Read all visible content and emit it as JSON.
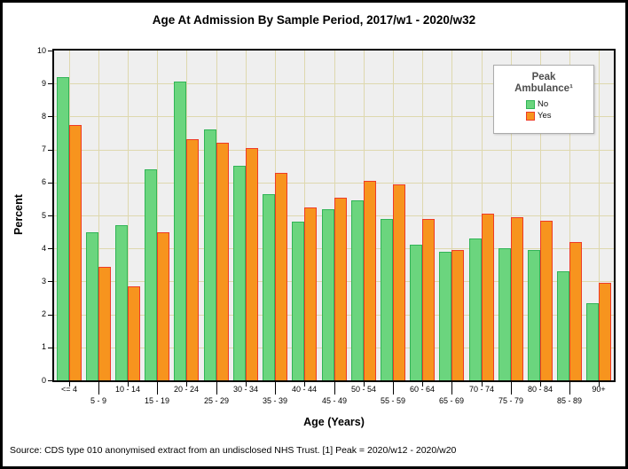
{
  "title": "Age At Admission By Sample Period, 2017/w1 - 2020/w32",
  "axes": {
    "y_label": "Percent",
    "x_label": "Age (Years)"
  },
  "legend": {
    "title": "Peak Ambulance¹",
    "items": [
      {
        "label": "No",
        "fill": "#6bd57e",
        "border": "#31b457"
      },
      {
        "label": "Yes",
        "fill": "#f7941e",
        "border": "#ee3b26"
      }
    ]
  },
  "source_note": "Source: CDS type 010 anonymised extract from an undisclosed NHS Trust. [1] Peak = 2020/w12 - 2020/w20",
  "colors": {
    "plot_background": "#efefef",
    "gridline": "#ded8ae",
    "axis": "#000000",
    "no_fill": "#6bd57e",
    "no_border": "#31b457",
    "yes_fill": "#f7941e",
    "yes_border": "#ee3b26"
  },
  "chart_data": {
    "type": "bar",
    "title": "Age At Admission By Sample Period, 2017/w1 - 2020/w32",
    "xlabel": "Age (Years)",
    "ylabel": "Percent",
    "ylim": [
      0,
      10
    ],
    "yticks": [
      0,
      1,
      2,
      3,
      4,
      5,
      6,
      7,
      8,
      9,
      10
    ],
    "grid": true,
    "legend_position": "top-right",
    "categories": [
      "<= 4",
      "5 - 9",
      "10 - 14",
      "15 - 19",
      "20 - 24",
      "25 - 29",
      "30 - 34",
      "35 - 39",
      "40 - 44",
      "45 - 49",
      "50 - 54",
      "55 - 59",
      "60 - 64",
      "65 - 69",
      "70 - 74",
      "75 - 79",
      "80 - 84",
      "85 - 89",
      "90+"
    ],
    "series": [
      {
        "name": "No",
        "values": [
          9.2,
          4.5,
          4.7,
          6.4,
          9.05,
          7.6,
          6.5,
          5.65,
          4.8,
          5.2,
          5.45,
          4.9,
          4.1,
          3.9,
          4.3,
          4.0,
          3.95,
          3.3,
          2.35
        ]
      },
      {
        "name": "Yes",
        "values": [
          7.75,
          3.45,
          2.85,
          4.5,
          7.3,
          7.2,
          7.05,
          6.3,
          5.25,
          5.55,
          6.05,
          5.95,
          4.9,
          3.95,
          5.05,
          4.95,
          4.85,
          4.2,
          2.95
        ]
      }
    ]
  }
}
